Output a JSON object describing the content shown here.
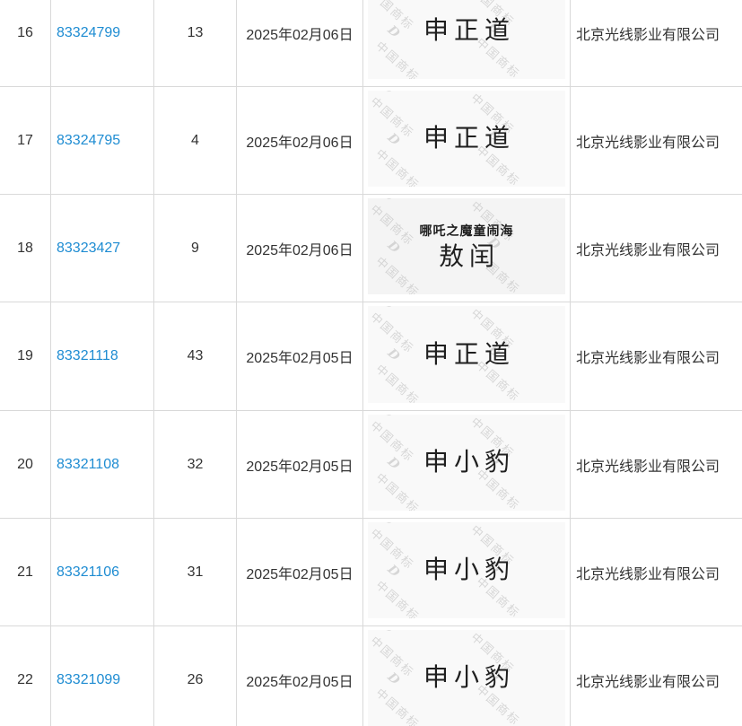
{
  "watermark": {
    "text": "中国商标",
    "logo_icon": "D"
  },
  "colors": {
    "link_blue": "#1e8cd2",
    "border_gray": "#d9d9d9",
    "body_text": "#333333",
    "mark_text": "#1f1f1f",
    "watermark_gray": "#bbbbbb"
  },
  "rows": [
    {
      "index": "16",
      "reg_no": "83324799",
      "class_no": "13",
      "date": "2025年02月06日",
      "mark": {
        "sub": "",
        "main": "申正道"
      },
      "applicant": "北京光线影业有限公司"
    },
    {
      "index": "17",
      "reg_no": "83324795",
      "class_no": "4",
      "date": "2025年02月06日",
      "mark": {
        "sub": "",
        "main": "申正道"
      },
      "applicant": "北京光线影业有限公司"
    },
    {
      "index": "18",
      "reg_no": "83323427",
      "class_no": "9",
      "date": "2025年02月06日",
      "mark": {
        "sub": "哪吒之魔童闹海",
        "main": "敖闰"
      },
      "applicant": "北京光线影业有限公司"
    },
    {
      "index": "19",
      "reg_no": "83321118",
      "class_no": "43",
      "date": "2025年02月05日",
      "mark": {
        "sub": "",
        "main": "申正道"
      },
      "applicant": "北京光线影业有限公司"
    },
    {
      "index": "20",
      "reg_no": "83321108",
      "class_no": "32",
      "date": "2025年02月05日",
      "mark": {
        "sub": "",
        "main": "申小豹"
      },
      "applicant": "北京光线影业有限公司"
    },
    {
      "index": "21",
      "reg_no": "83321106",
      "class_no": "31",
      "date": "2025年02月05日",
      "mark": {
        "sub": "",
        "main": "申小豹"
      },
      "applicant": "北京光线影业有限公司"
    },
    {
      "index": "22",
      "reg_no": "83321099",
      "class_no": "26",
      "date": "2025年02月05日",
      "mark": {
        "sub": "",
        "main": "申小豹"
      },
      "applicant": "北京光线影业有限公司"
    }
  ]
}
